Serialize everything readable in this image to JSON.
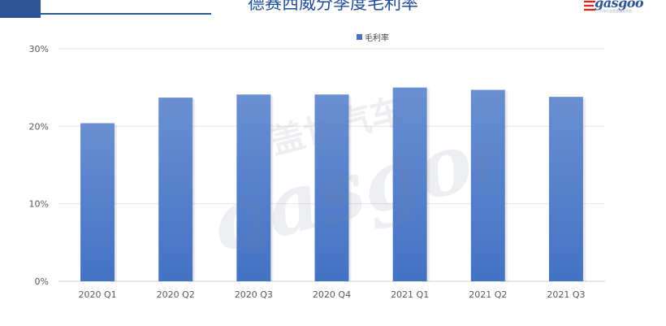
{
  "header": {
    "title": "德赛西威分季度毛利率",
    "logo_text": "gasgoo",
    "logo_tagline": "汽车行业信息服务平台"
  },
  "watermark": {
    "text": "gasgoo",
    "cjk": "盖世汽车"
  },
  "colors": {
    "bar_top": "#6a8fd2",
    "bar_bottom": "#4472c4",
    "accent": "#2f5597",
    "grid": "#e6e6e6",
    "axis": "#d0d0d0",
    "label": "#595959"
  },
  "chart_data": {
    "type": "bar",
    "title": "德赛西威分季度毛利率",
    "categories": [
      "2020 Q1",
      "2020 Q2",
      "2020 Q3",
      "2020 Q4",
      "2021 Q1",
      "2021 Q2",
      "2021 Q3"
    ],
    "series": [
      {
        "name": "毛利率",
        "values": [
          20.4,
          23.7,
          24.1,
          24.1,
          25.0,
          24.7,
          23.8
        ]
      }
    ],
    "ylim": [
      0,
      30
    ],
    "yticks": [
      0,
      10,
      20,
      30
    ],
    "ytick_labels": [
      "0%",
      "10%",
      "20%",
      "30%"
    ],
    "grid": true,
    "legend": "top"
  }
}
